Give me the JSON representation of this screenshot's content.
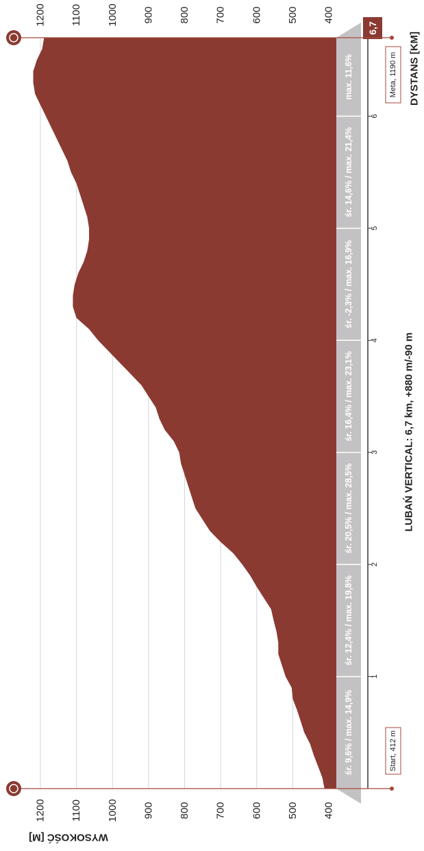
{
  "chart_data": {
    "type": "area",
    "title": "LUBAŃ VERTICAL: 6,7 km, +880 m/-90 m",
    "xlabel": "DYSTANS [KM]",
    "ylabel": "WYSOKOŚĆ [M]",
    "x_ticks": [
      "1",
      "2",
      "3",
      "4",
      "5",
      "6"
    ],
    "x_end_label": "6,7",
    "y_ticks": [
      "400",
      "500",
      "600",
      "700",
      "800",
      "900",
      "1000",
      "1100",
      "1200"
    ],
    "xlim": [
      0,
      6.7
    ],
    "ylim": [
      375,
      1225
    ],
    "grid": true,
    "colors": {
      "fill": "#8B3A32",
      "bar": "#c2c2c4",
      "line": "#a5473b"
    },
    "series": [
      {
        "x": [
          0,
          0.1,
          0.2,
          0.3,
          0.4,
          0.5,
          0.6,
          0.7,
          0.8,
          0.9,
          1.0,
          1.1,
          1.2,
          1.3,
          1.4,
          1.5,
          1.6,
          1.7,
          1.8,
          1.9,
          2.0,
          2.1,
          2.2,
          2.3,
          2.4,
          2.5,
          2.6,
          2.7,
          2.8,
          2.9,
          3.0,
          3.1,
          3.2,
          3.3,
          3.4,
          3.5,
          3.6,
          3.7,
          3.8,
          3.9,
          4.0,
          4.1,
          4.2,
          4.3,
          4.4,
          4.5,
          4.6,
          4.7,
          4.8,
          4.9,
          5.0,
          5.1,
          5.2,
          5.3,
          5.4,
          5.5,
          5.6,
          5.7,
          5.8,
          5.9,
          6.0,
          6.1,
          6.2,
          6.3,
          6.4,
          6.5,
          6.6,
          6.7
        ],
        "values": [
          412,
          418,
          430,
          442,
          452,
          468,
          478,
          488,
          500,
          503,
          520,
          530,
          540,
          540,
          545,
          553,
          560,
          580,
          600,
          618,
          640,
          665,
          700,
          730,
          750,
          770,
          780,
          790,
          800,
          810,
          815,
          830,
          855,
          870,
          880,
          900,
          920,
          950,
          980,
          1010,
          1040,
          1065,
          1100,
          1110,
          1110,
          1105,
          1095,
          1080,
          1070,
          1065,
          1065,
          1070,
          1080,
          1090,
          1100,
          1115,
          1125,
          1140,
          1155,
          1170,
          1185,
          1200,
          1215,
          1220,
          1220,
          1210,
          1195,
          1190
        ]
      }
    ],
    "segments": [
      "śr. 9,6% / max. 14,9%",
      "śr. 12,4% / max. 19,8%",
      "śr. 20,5% / max. 28,5%",
      "śr. 16,4% / max. 23,1%",
      "śr. -2,3% / max. 16,9%",
      "śr. 14,6% / max. 21,4%",
      "max. 11,6%"
    ],
    "annotations": {
      "start": "Start, 412 m",
      "finish": "Meta, 1190 m"
    }
  }
}
